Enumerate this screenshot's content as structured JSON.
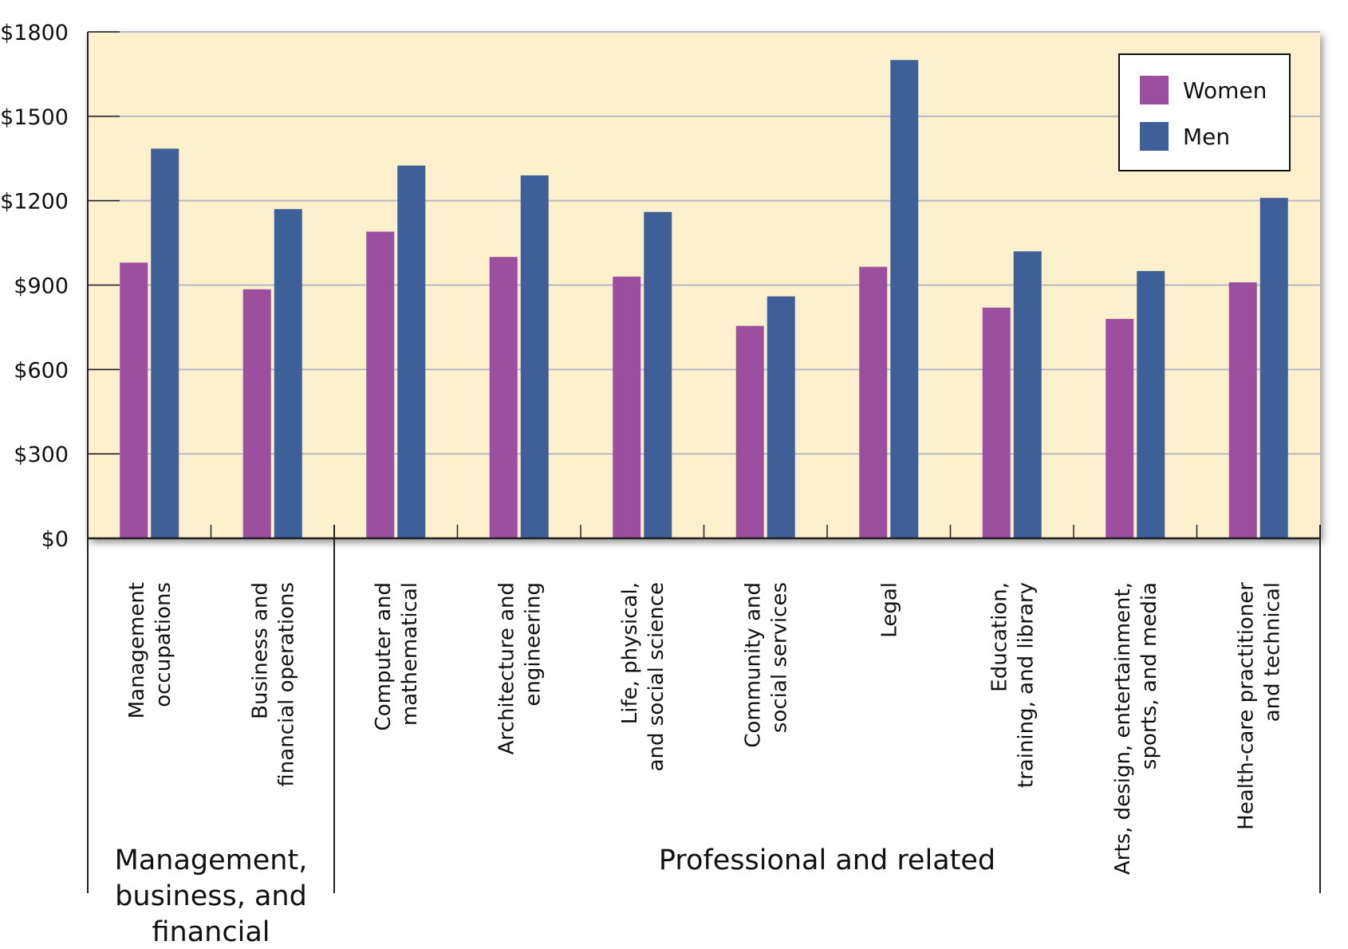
{
  "chart_data": {
    "type": "bar",
    "title": "",
    "xlabel": "",
    "ylabel": "",
    "ylim": [
      0,
      1800
    ],
    "yticks": [
      0,
      300,
      600,
      900,
      1200,
      1500,
      1800
    ],
    "ytick_labels": [
      "$0",
      "$300",
      "$600",
      "$900",
      "$1200",
      "$1500",
      "$1800"
    ],
    "grid": true,
    "legend_position": "top-right",
    "categories": [
      [
        "Management",
        "occupations"
      ],
      [
        "Business and",
        "financial operations"
      ],
      [
        "Computer and",
        "mathematical"
      ],
      [
        "Architecture and",
        "engineering"
      ],
      [
        "Life, physical,",
        "and social science"
      ],
      [
        "Community and",
        "social services"
      ],
      [
        "Legal"
      ],
      [
        "Education,",
        "training,  and library"
      ],
      [
        "Arts, design, entertainment,",
        "sports, and media"
      ],
      [
        "Health-care practitioner",
        "and technical"
      ]
    ],
    "series": [
      {
        "name": "Women",
        "color": "#9b4f9e",
        "values": [
          980,
          885,
          1090,
          1000,
          930,
          755,
          965,
          820,
          780,
          910
        ]
      },
      {
        "name": "Men",
        "color": "#3f5f98",
        "values": [
          1385,
          1170,
          1325,
          1290,
          1160,
          860,
          1700,
          1020,
          950,
          1210
        ]
      }
    ],
    "groups": [
      {
        "lines": [
          "Management,",
          "business, and",
          "financial"
        ],
        "start": 0,
        "end": 1
      },
      {
        "lines": [
          "Professional and related"
        ],
        "start": 2,
        "end": 9
      }
    ]
  },
  "colors": {
    "plot_background": "#fdf0cc",
    "gridline": "#b8b8c4",
    "axis": "#222222"
  }
}
